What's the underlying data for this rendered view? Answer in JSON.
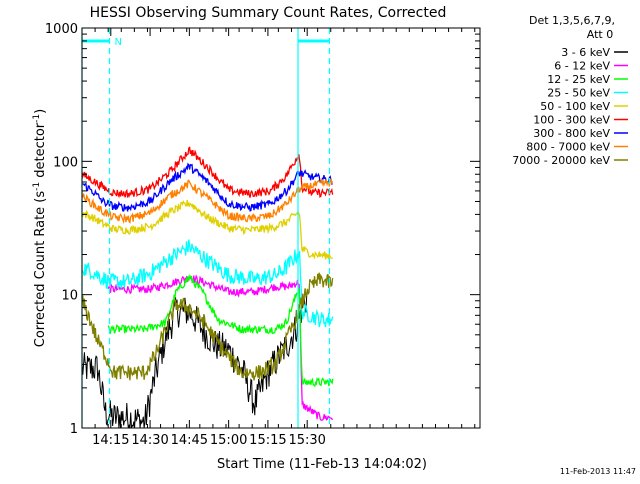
{
  "chart_data": {
    "type": "line",
    "title": "HESSI Observing Summary Count Rates, Corrected",
    "xlabel": "Start Time (11-Feb-13 14:04:02)",
    "ylabel_main": "Corrected Count Rate (s",
    "ylabel_sup1": "-1",
    "ylabel_mid": " detector",
    "ylabel_sup2": "-1",
    "ylabel_end": ")",
    "yscale": "log",
    "ylim": [
      1,
      1000
    ],
    "xlim": [
      244,
      396
    ],
    "x_ticks": [
      {
        "v": 255,
        "label": "14:15"
      },
      {
        "v": 270,
        "label": "14:30"
      },
      {
        "v": 285,
        "label": "14:45"
      },
      {
        "v": 300,
        "label": "15:00"
      },
      {
        "v": 315,
        "label": "15:15"
      },
      {
        "v": 330,
        "label": "15:30"
      }
    ],
    "y_ticks": [
      {
        "v": 1,
        "label": "1"
      },
      {
        "v": 10,
        "label": "10"
      },
      {
        "v": 100,
        "label": "100"
      },
      {
        "v": 1000,
        "label": "1000"
      }
    ],
    "legend_header": [
      "Det 1,3,5,6,7,9,",
      "Att 0"
    ],
    "legend_position": "right",
    "series": [
      {
        "name": "3 - 6 keV",
        "color": "#000000",
        "x": [
          244,
          250,
          253,
          256,
          262,
          268,
          272,
          276,
          280,
          285,
          290,
          295,
          300,
          305,
          310,
          315,
          320,
          323,
          326,
          328,
          330
        ],
        "y": [
          2.8,
          2.8,
          1.3,
          1.2,
          1.2,
          1.1,
          2.5,
          4.8,
          7.5,
          7.5,
          5.5,
          4.2,
          3.8,
          2.8,
          1.5,
          2.6,
          3.6,
          4.4,
          5.8,
          8.0,
          9.5
        ]
      },
      {
        "name": "6 - 12 keV",
        "color": "#ff00ff",
        "x": [
          254,
          260,
          270,
          280,
          285,
          290,
          300,
          310,
          318,
          323,
          327,
          328,
          335,
          340
        ],
        "y": [
          11.0,
          11.0,
          11.0,
          12.5,
          13.5,
          12.5,
          10.5,
          10.5,
          11.5,
          11.5,
          12.5,
          1.5,
          1.2,
          1.2
        ]
      },
      {
        "name": "12 - 25 keV",
        "color": "#00ff00",
        "x": [
          254,
          260,
          268,
          276,
          280,
          285,
          290,
          296,
          305,
          312,
          318,
          322,
          327,
          328,
          335,
          340
        ],
        "y": [
          5.5,
          5.5,
          5.5,
          6.2,
          10.5,
          13.5,
          10.5,
          6.5,
          5.5,
          5.5,
          5.5,
          6.2,
          11.5,
          2.2,
          2.2,
          2.2
        ]
      },
      {
        "name": "25 - 50 keV",
        "color": "#00ffff",
        "x": [
          244,
          248,
          250,
          253,
          254,
          262,
          270,
          278,
          285,
          292,
          300,
          310,
          318,
          322,
          327,
          328,
          335,
          340
        ],
        "y": [
          16.0,
          15.0,
          14.0,
          13.0,
          12.5,
          12.5,
          14.5,
          19.0,
          23.0,
          18.0,
          14.0,
          13.0,
          14.0,
          16.0,
          21.0,
          7.5,
          6.5,
          6.5
        ]
      },
      {
        "name": "50 - 100 keV",
        "color": "#e0d000",
        "x": [
          244,
          248,
          252,
          256,
          262,
          270,
          278,
          285,
          292,
          300,
          308,
          316,
          322,
          327,
          328,
          332,
          340
        ],
        "y": [
          41.0,
          38.0,
          34.0,
          31.0,
          30.5,
          32.5,
          42.0,
          49.0,
          38.0,
          31.5,
          30.5,
          31.5,
          35.0,
          42.0,
          22.0,
          20.0,
          19.5
        ]
      },
      {
        "name": "100 - 300 keV",
        "color": "#ff0000",
        "x": [
          244,
          248,
          252,
          256,
          262,
          270,
          278,
          285,
          292,
          300,
          308,
          316,
          322,
          327,
          328,
          332,
          340
        ],
        "y": [
          80.0,
          72.0,
          64.0,
          58.0,
          57.0,
          62.0,
          85.0,
          122.0,
          90.0,
          61.0,
          57.0,
          60.0,
          78.0,
          115.0,
          64.0,
          58.0,
          58.0
        ]
      },
      {
        "name": "300 - 800 keV",
        "color": "#0000ff",
        "x": [
          244,
          248,
          252,
          256,
          262,
          270,
          278,
          285,
          292,
          300,
          308,
          316,
          322,
          327,
          332,
          340
        ],
        "y": [
          68.0,
          60.0,
          50.0,
          46.0,
          45.0,
          50.0,
          72.0,
          92.0,
          70.0,
          48.0,
          45.0,
          48.0,
          60.0,
          82.0,
          76.0,
          72.0
        ]
      },
      {
        "name": "800 - 7000 keV",
        "color": "#ff8000",
        "x": [
          244,
          248,
          252,
          256,
          262,
          270,
          278,
          285,
          292,
          300,
          308,
          316,
          322,
          327,
          332,
          340
        ],
        "y": [
          55.0,
          48.0,
          42.0,
          38.0,
          37.0,
          41.0,
          56.0,
          68.0,
          53.0,
          39.0,
          37.0,
          39.0,
          48.0,
          62.0,
          66.0,
          70.0
        ]
      },
      {
        "name": "7000 - 20000 keV",
        "color": "#808000",
        "x": [
          244,
          247,
          250,
          253,
          256,
          262,
          268,
          272,
          276,
          280,
          285,
          290,
          295,
          300,
          305,
          312,
          318,
          322,
          326,
          330,
          335,
          340
        ],
        "y": [
          9.0,
          6.5,
          4.5,
          3.5,
          2.6,
          2.6,
          2.6,
          3.5,
          5.5,
          8.5,
          8.0,
          6.5,
          4.6,
          3.4,
          2.6,
          2.6,
          3.0,
          4.5,
          6.8,
          11.0,
          13.0,
          12.0
        ]
      }
    ],
    "vertical_markers": [
      {
        "x": 244,
        "style": "solid"
      },
      {
        "x": 254.5,
        "style": "dashed"
      },
      {
        "x": 326.5,
        "style": "solid"
      },
      {
        "x": 338.5,
        "style": "dashed"
      }
    ],
    "marker_color": "#00ffff",
    "night_bars": [
      {
        "x0": 244,
        "x1": 254.5
      },
      {
        "x0": 326.5,
        "x1": 338.5
      }
    ],
    "night_label": "N",
    "datestamp": "11-Feb-2013 11:47"
  }
}
